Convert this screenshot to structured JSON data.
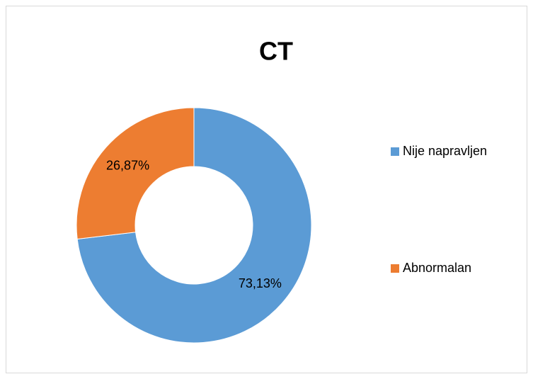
{
  "chart_data": {
    "type": "pie",
    "title": "CT",
    "categories": [
      "Nije napravljen",
      "Abnormalan"
    ],
    "values": [
      73.13,
      26.87
    ],
    "value_labels": [
      "73,13%",
      "26,87%"
    ],
    "colors": [
      "#5b9bd5",
      "#ed7d31"
    ],
    "donut": true,
    "legend": "right"
  }
}
